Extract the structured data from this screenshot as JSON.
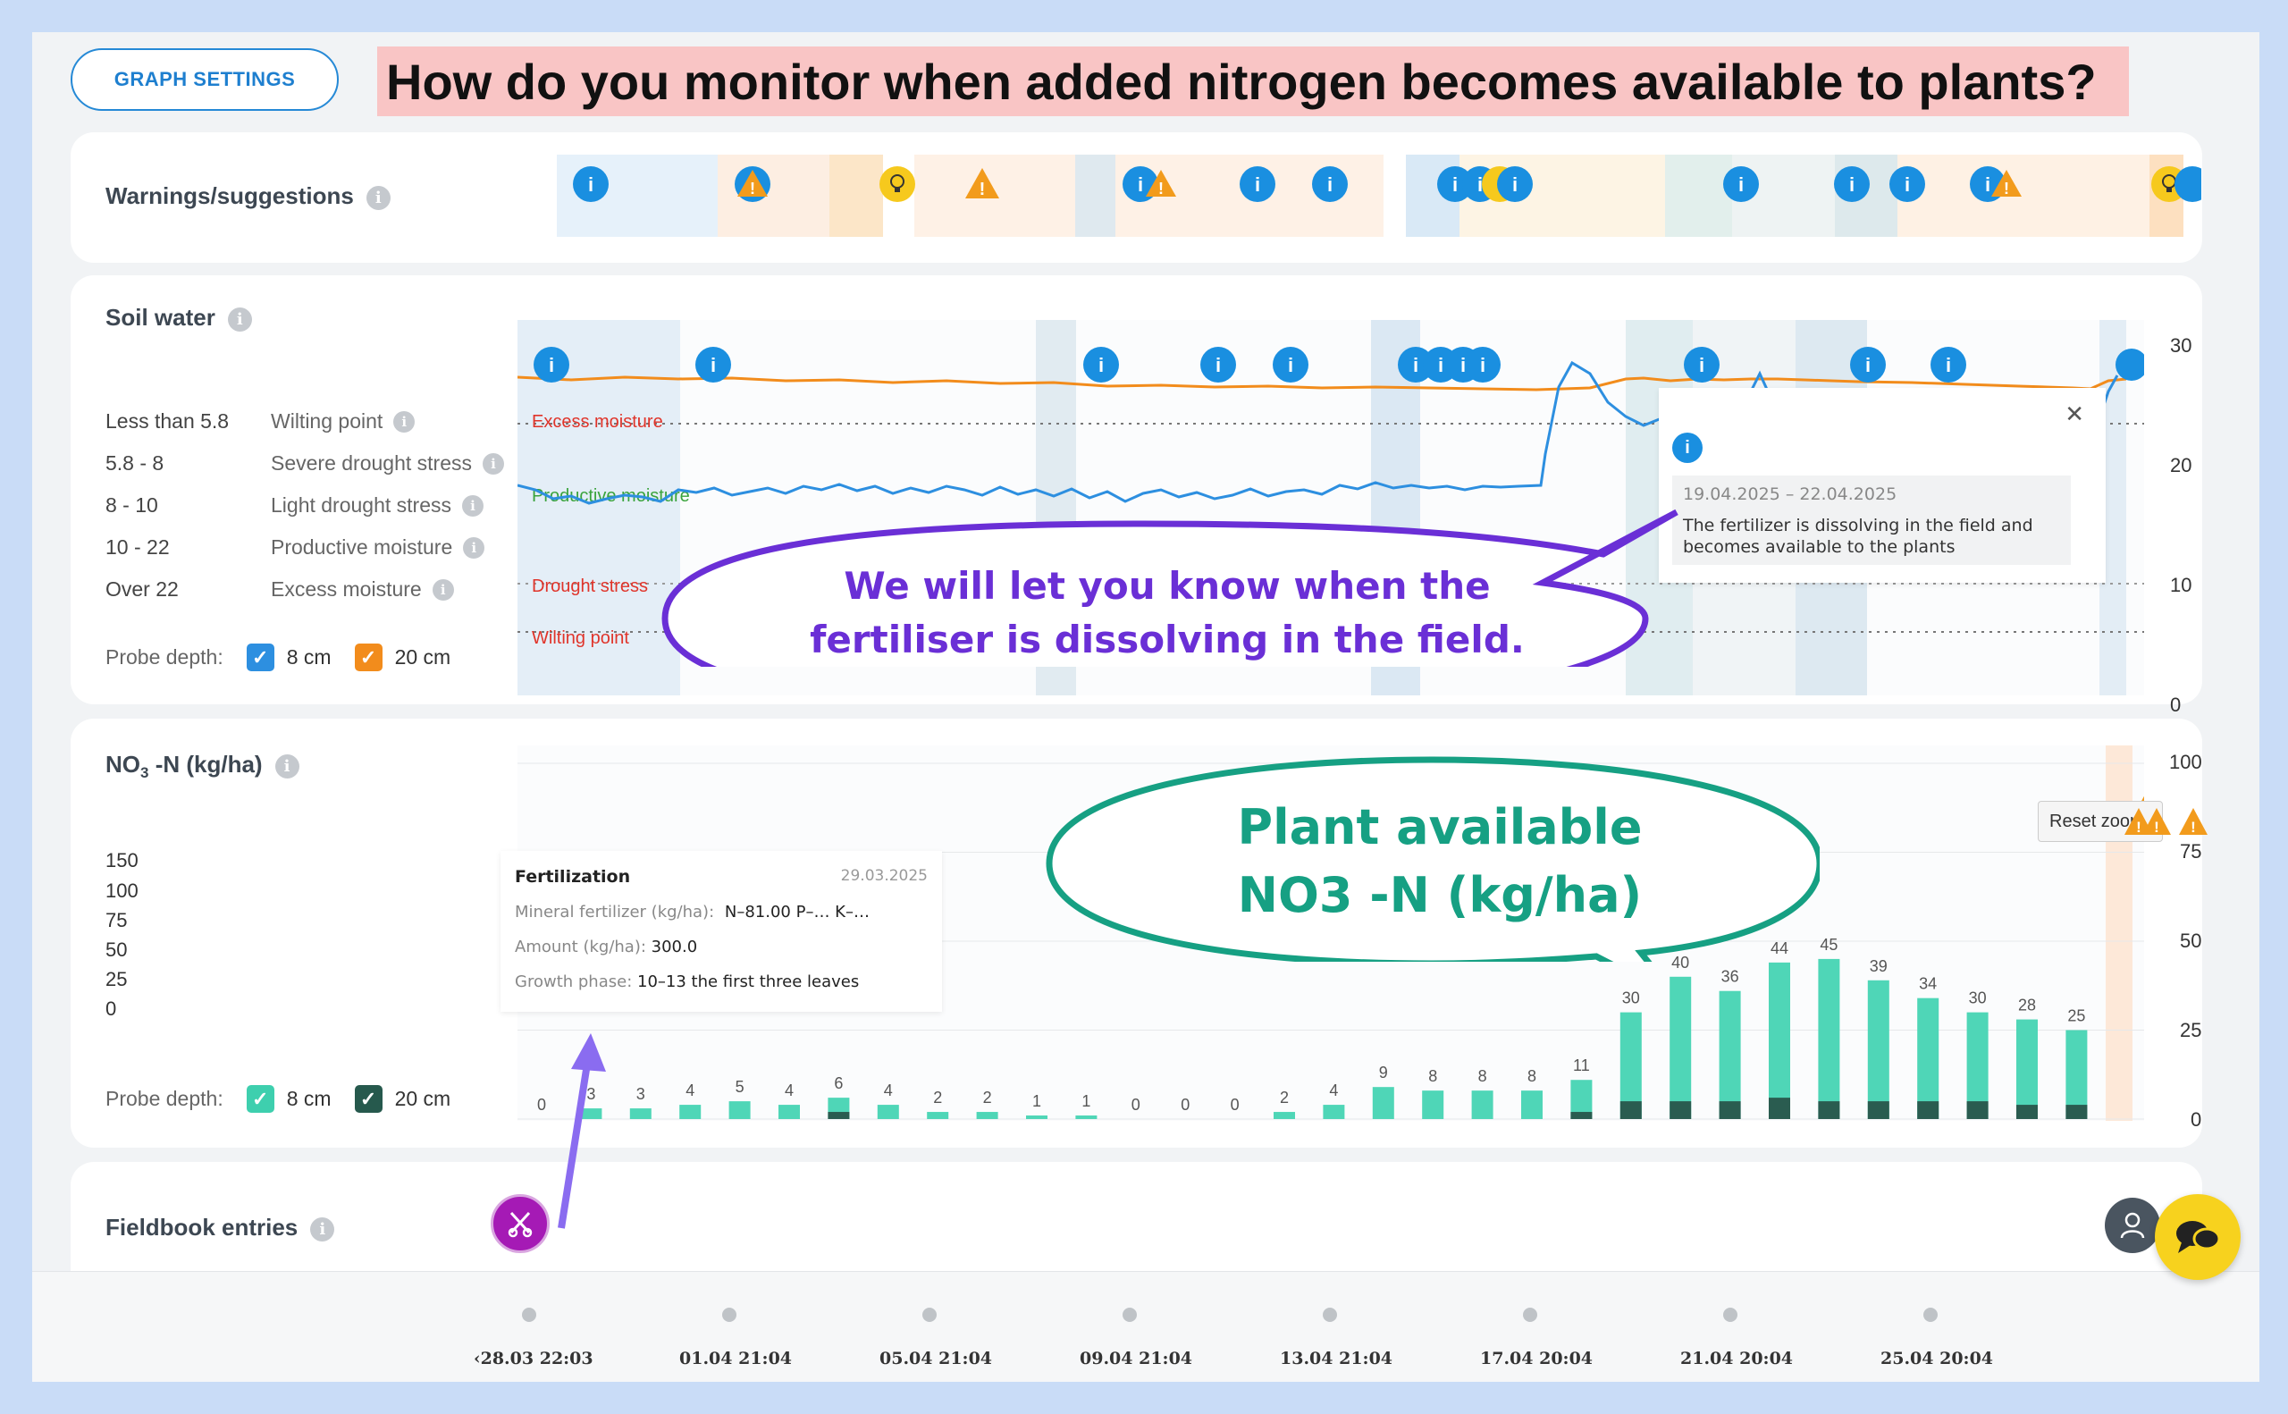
{
  "toolbar": {
    "graph_settings_label": "GRAPH SETTINGS"
  },
  "headline": "How do you monitor when added nitrogen becomes available to plants?",
  "warnings_card": {
    "title": "Warnings/suggestions"
  },
  "soil_water_card": {
    "title": "Soil water",
    "legend": [
      {
        "range": "Less than 5.8",
        "label": "Wilting point"
      },
      {
        "range": "5.8 - 8",
        "label": "Severe drought stress"
      },
      {
        "range": "8 - 10",
        "label": "Light drought stress"
      },
      {
        "range": "10 - 22",
        "label": "Productive moisture"
      },
      {
        "range": "Over 22",
        "label": "Excess moisture"
      }
    ],
    "probe_label": "Probe depth:",
    "probe_options": [
      "8 cm",
      "20 cm"
    ],
    "probe_colors": [
      "#2d8fe0",
      "#f28c1c"
    ],
    "zone_labels": {
      "excess": "Excess moisture",
      "productive": "Productive moisture",
      "drought": "Drought stress",
      "wilting": "Wilting point"
    },
    "y_ticks": [
      "30",
      "20",
      "10",
      "0"
    ],
    "popup": {
      "date_range": "19.04.2025 – 22.04.2025",
      "message": "The fertilizer is dissolving in the field and becomes available to the plants",
      "close": "✕"
    },
    "callout": "We will let you know when the fertiliser is dissolving in the field."
  },
  "nitrate_card": {
    "title_main": "NO",
    "title_sub": "3",
    "title_rest": " -N (kg/ha)",
    "left_scale": [
      "150",
      "100",
      "75",
      "50",
      "25",
      "0"
    ],
    "probe_label": "Probe depth:",
    "probe_options": [
      "8 cm",
      "20 cm"
    ],
    "probe_colors": [
      "#3ecfae",
      "#26594d"
    ],
    "reset_zoom": "Reset zoom",
    "callout_line1": "Plant available",
    "callout_line2": "NO3 -N (kg/ha)",
    "tooltip": {
      "title": "Fertilization",
      "date": "29.03.2025",
      "rows": [
        {
          "label": "Mineral fertilizer (kg/ha):",
          "value": "N–81.00 P–… K–…"
        },
        {
          "label": "Amount (kg/ha):",
          "value": "300.0"
        },
        {
          "label": "Growth phase:",
          "value": "10–13 the first three leaves"
        }
      ]
    }
  },
  "chart_data": {
    "type": "bar",
    "title": "NO3 -N (kg/ha)",
    "ylim": [
      0,
      100
    ],
    "y_ticks": [
      0,
      25,
      50,
      75,
      100
    ],
    "series": [
      {
        "name": "8 cm",
        "values": [
          0,
          3,
          3,
          4,
          5,
          4,
          6,
          4,
          2,
          2,
          1,
          1,
          0,
          0,
          0,
          2,
          4,
          9,
          8,
          8,
          8,
          11,
          30,
          40,
          36,
          44,
          45,
          39,
          34,
          30,
          28,
          25
        ]
      },
      {
        "name": "20 cm",
        "values": [
          0,
          0,
          0,
          0,
          0,
          0,
          2,
          0,
          0,
          0,
          0,
          0,
          0,
          0,
          0,
          0,
          0,
          0,
          0,
          0,
          0,
          2,
          5,
          5,
          5,
          6,
          5,
          5,
          5,
          5,
          4,
          4
        ]
      }
    ],
    "labels": [
      "0",
      "3",
      "3",
      "4",
      "5",
      "4",
      "6",
      "4",
      "2",
      "2",
      "1",
      "1",
      "0",
      "0",
      "0",
      "2",
      "4",
      "9",
      "8",
      "8",
      "8",
      "11",
      "30",
      "40",
      "36",
      "44",
      "45",
      "39",
      "34",
      "30",
      "28",
      "25"
    ]
  },
  "fieldbook_card": {
    "title": "Fieldbook entries"
  },
  "timeline": {
    "labels": [
      "28.03 22:03",
      "01.04 21:04",
      "05.04 21:04",
      "09.04 21:04",
      "13.04 21:04",
      "17.04 20:04",
      "21.04 20:04",
      "25.04 20:04"
    ]
  },
  "colors": {
    "info_blue": "#1a8fe0",
    "warning_orange": "#f29b1c",
    "tip_yellow": "#f6c91d",
    "callout_purple": "#6a2fd6",
    "callout_teal": "#16a083"
  }
}
